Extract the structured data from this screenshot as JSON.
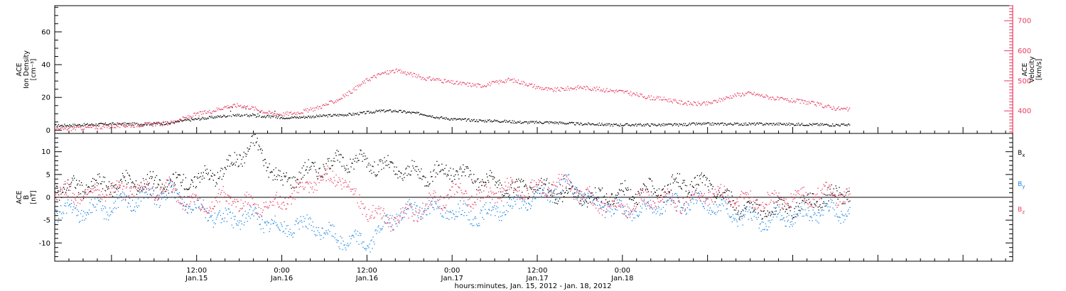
{
  "chart_data": [
    {
      "type": "scatter",
      "panel": "plasma",
      "ylabel_left": [
        "ACE",
        "Ion Density",
        "[cm⁻³]"
      ],
      "ylabel_right": [
        "ACE",
        "Velocity",
        "[km/s]"
      ],
      "ylim_left": [
        -2,
        76
      ],
      "yticks_left": [
        "0",
        "20",
        "40",
        "60"
      ],
      "ylim_right": [
        325,
        750
      ],
      "yticks_right": [
        "400",
        "500",
        "600",
        "700"
      ],
      "series": [
        {
          "name": "",
          "color": "#000000",
          "axis": "left",
          "x": [
            -20,
            -16,
            -12,
            -8,
            -4,
            -2,
            0,
            2,
            4,
            6,
            8,
            10,
            12,
            14,
            16,
            18,
            20,
            22,
            24,
            26,
            28,
            30,
            32,
            34,
            36,
            38,
            40,
            42,
            44,
            46,
            48,
            50,
            52,
            54,
            56,
            58,
            60,
            62,
            64,
            66,
            68,
            70,
            72,
            74,
            76,
            78,
            80,
            82,
            84,
            86,
            88,
            90,
            92
          ],
          "y": [
            3,
            3.5,
            4,
            4,
            4.5,
            6,
            7,
            8,
            9,
            9.5,
            9,
            8.5,
            8,
            8,
            8.5,
            9,
            9.5,
            10,
            11,
            12,
            12,
            11,
            10,
            8,
            7,
            6.5,
            6,
            6,
            5.5,
            5,
            5,
            5,
            4.5,
            4,
            4,
            3.5,
            3.5,
            3.5,
            3.5,
            3.5,
            3.5,
            4,
            4,
            4,
            4,
            4,
            4,
            4,
            3.8,
            3.8,
            3.6,
            3.5,
            3.5
          ]
        },
        {
          "name": "",
          "color": "#e83a5f",
          "axis": "right",
          "x": [
            -20,
            -16,
            -12,
            -8,
            -4,
            -2,
            0,
            2,
            4,
            6,
            8,
            10,
            12,
            14,
            16,
            18,
            20,
            22,
            24,
            26,
            28,
            30,
            32,
            34,
            36,
            38,
            40,
            42,
            44,
            46,
            48,
            50,
            52,
            54,
            56,
            58,
            60,
            62,
            64,
            66,
            68,
            70,
            72,
            74,
            76,
            78,
            80,
            82,
            84,
            86,
            88,
            90,
            92
          ],
          "y": [
            340,
            345,
            350,
            355,
            360,
            375,
            390,
            400,
            415,
            420,
            410,
            395,
            390,
            395,
            405,
            420,
            440,
            470,
            505,
            525,
            535,
            525,
            510,
            505,
            495,
            490,
            485,
            495,
            505,
            495,
            480,
            470,
            475,
            480,
            475,
            470,
            465,
            455,
            445,
            440,
            430,
            425,
            425,
            440,
            455,
            460,
            450,
            440,
            435,
            430,
            420,
            410,
            405
          ]
        }
      ]
    },
    {
      "type": "scatter",
      "panel": "magnetic-field",
      "ylabel_left": [
        "ACE",
        "B",
        "[nT]"
      ],
      "ylim": [
        -14,
        14
      ],
      "yticks": [
        "-10",
        "-5",
        "0",
        "5",
        "10"
      ],
      "legend_placement": "right",
      "series": [
        {
          "name": "Bx",
          "color": "#000000",
          "x": [
            -20,
            -16,
            -12,
            -8,
            -4,
            0,
            4,
            8,
            12,
            14,
            16,
            20,
            24,
            28,
            32,
            36,
            40,
            44,
            48,
            52,
            56,
            60,
            64,
            68,
            72,
            76,
            80,
            84,
            88,
            92
          ],
          "y": [
            2,
            2.5,
            3,
            3.5,
            3,
            4,
            6,
            12,
            3,
            5,
            6,
            8,
            8,
            6,
            5,
            6,
            4,
            2,
            2,
            1,
            0,
            1,
            1.5,
            3,
            3,
            -2,
            -3,
            -2,
            0,
            1
          ]
        },
        {
          "name": "By",
          "color": "#1c86e0",
          "x": [
            -20,
            -16,
            -12,
            -8,
            -4,
            0,
            4,
            8,
            12,
            14,
            16,
            20,
            24,
            28,
            32,
            36,
            40,
            44,
            48,
            52,
            56,
            60,
            64,
            68,
            72,
            76,
            80,
            84,
            88,
            92
          ],
          "y": [
            -3,
            -3,
            -2,
            0,
            1,
            -2,
            -5,
            -4,
            -7,
            -6,
            -6,
            -9,
            -10,
            -4,
            -2,
            -3,
            -4,
            -2,
            0,
            3,
            -1,
            -3,
            -2,
            -1,
            -1,
            -4,
            -5,
            -4,
            -3,
            -3
          ]
        },
        {
          "name": "Bz",
          "color": "#e83a5f",
          "x": [
            -20,
            -16,
            -12,
            -8,
            -4,
            0,
            4,
            8,
            12,
            14,
            16,
            20,
            24,
            28,
            32,
            36,
            40,
            44,
            48,
            52,
            56,
            60,
            64,
            68,
            72,
            76,
            80,
            84,
            88,
            92
          ],
          "y": [
            1,
            1,
            1.5,
            2,
            2,
            -2,
            0,
            -2,
            -1,
            1,
            3,
            5,
            -3,
            -5,
            -2,
            1,
            0,
            2,
            2,
            3,
            -1,
            -2,
            0,
            -1,
            1,
            0,
            -1,
            0,
            1,
            0
          ]
        }
      ],
      "legend_labels": [
        {
          "main": "B",
          "sub": "x",
          "color": "#000000"
        },
        {
          "main": "B",
          "sub": "y",
          "color": "#1c86e0"
        },
        {
          "main": "B",
          "sub": "z",
          "color": "#e83a5f"
        }
      ]
    }
  ],
  "x_axis": {
    "xlim": [
      -20,
      115
    ],
    "ticks": [
      {
        "x": 0,
        "time": "12:00",
        "day": "Jan.15"
      },
      {
        "x": 12,
        "time": "0:00",
        "day": "Jan.16"
      },
      {
        "x": 24,
        "time": "12:00",
        "day": "Jan.16"
      },
      {
        "x": 36,
        "time": "0:00",
        "day": "Jan.17"
      },
      {
        "x": 48,
        "time": "12:00",
        "day": "Jan.17"
      },
      {
        "x": 60,
        "time": "0:00",
        "day": "Jan.18"
      }
    ],
    "label": "hours:minutes, Jan. 15, 2012 - Jan. 18, 2012"
  }
}
